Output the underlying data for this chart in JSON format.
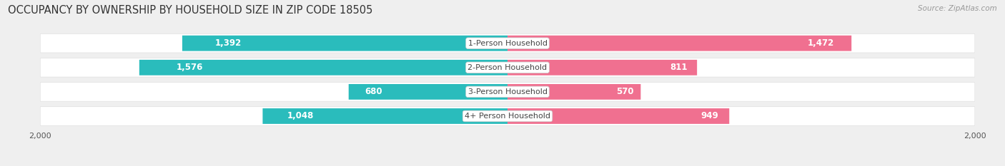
{
  "title": "OCCUPANCY BY OWNERSHIP BY HOUSEHOLD SIZE IN ZIP CODE 18505",
  "source": "Source: ZipAtlas.com",
  "categories": [
    "1-Person Household",
    "2-Person Household",
    "3-Person Household",
    "4+ Person Household"
  ],
  "owner_values": [
    1392,
    1576,
    680,
    1048
  ],
  "renter_values": [
    1472,
    811,
    570,
    949
  ],
  "owner_color": "#2abcbc",
  "renter_color": "#f07090",
  "label_color_white": "#ffffff",
  "label_color_dark": "#555555",
  "center_label_color": "#444444",
  "background_color": "#efefef",
  "bar_bg_color": "#e0e0e0",
  "bar_bg_color_alt": "#d8d8d8",
  "max_value": 2000,
  "bar_height": 0.62,
  "title_fontsize": 10.5,
  "source_fontsize": 7.5,
  "bar_label_fontsize": 8.5,
  "category_fontsize": 8,
  "axis_label_fontsize": 8,
  "legend_fontsize": 8.5,
  "small_threshold": 400
}
